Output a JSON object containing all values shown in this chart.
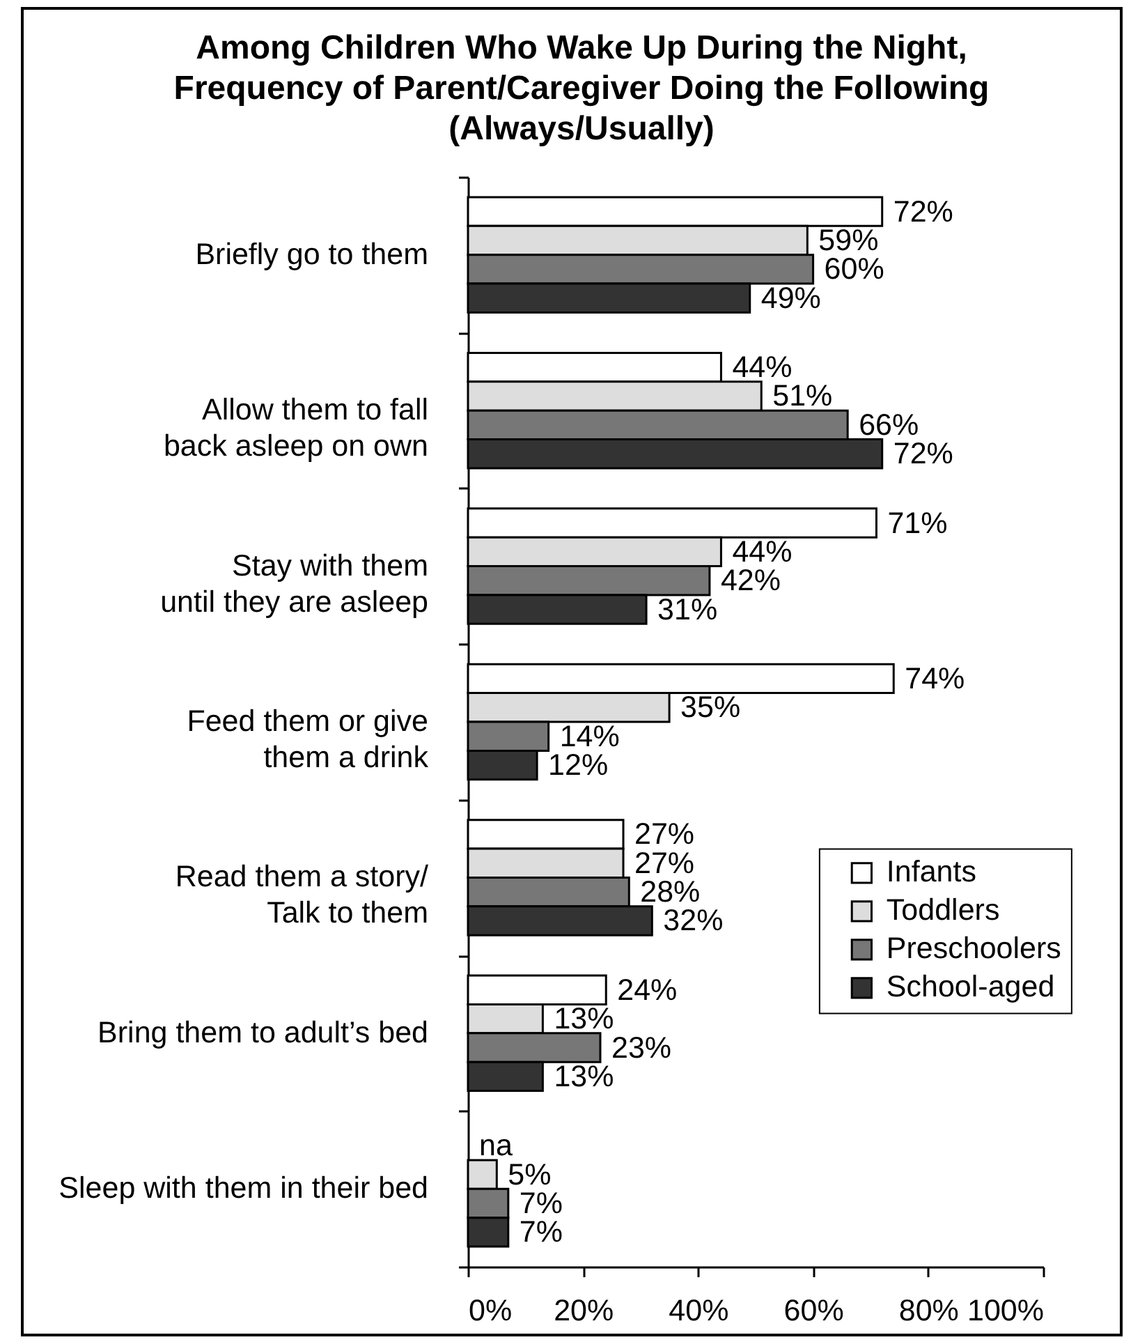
{
  "chart_data": {
    "type": "bar",
    "orientation": "horizontal",
    "title": "Among Children Who Wake Up During the Night,\nFrequency of Parent/Caregiver Doing the Following\n(Always/Usually)",
    "categories": [
      "Briefly go to them",
      "Allow them to fall\nback asleep on own",
      "Stay with them\nuntil they are asleep",
      "Feed them or give\nthem a drink",
      "Read them a story/\nTalk to them",
      "Bring them to adult’s bed",
      "Sleep with them in their bed"
    ],
    "series": [
      {
        "name": "Infants",
        "color": "#ffffff",
        "values": [
          72,
          44,
          71,
          74,
          27,
          24,
          null
        ],
        "value_labels": [
          "72%",
          "44%",
          "71%",
          "74%",
          "27%",
          "24%",
          "na"
        ]
      },
      {
        "name": "Toddlers",
        "color": "#dddddd",
        "values": [
          59,
          51,
          44,
          35,
          27,
          13,
          5
        ],
        "value_labels": [
          "59%",
          "51%",
          "44%",
          "35%",
          "27%",
          "13%",
          "5%"
        ]
      },
      {
        "name": "Preschoolers",
        "color": "#777777",
        "values": [
          60,
          66,
          42,
          14,
          28,
          23,
          7
        ],
        "value_labels": [
          "60%",
          "66%",
          "42%",
          "14%",
          "28%",
          "23%",
          "7%"
        ]
      },
      {
        "name": "School-aged",
        "color": "#333333",
        "values": [
          49,
          72,
          31,
          12,
          32,
          13,
          7
        ],
        "value_labels": [
          "49%",
          "72%",
          "31%",
          "12%",
          "32%",
          "13%",
          "7%"
        ]
      }
    ],
    "xlim": [
      0,
      100
    ],
    "xticks": [
      {
        "value": 0,
        "label": "0%"
      },
      {
        "value": 20,
        "label": "20%"
      },
      {
        "value": 40,
        "label": "40%"
      },
      {
        "value": 60,
        "label": "60%"
      },
      {
        "value": 80,
        "label": "80%"
      },
      {
        "value": 100,
        "label": "100%"
      }
    ],
    "legend": "right"
  }
}
